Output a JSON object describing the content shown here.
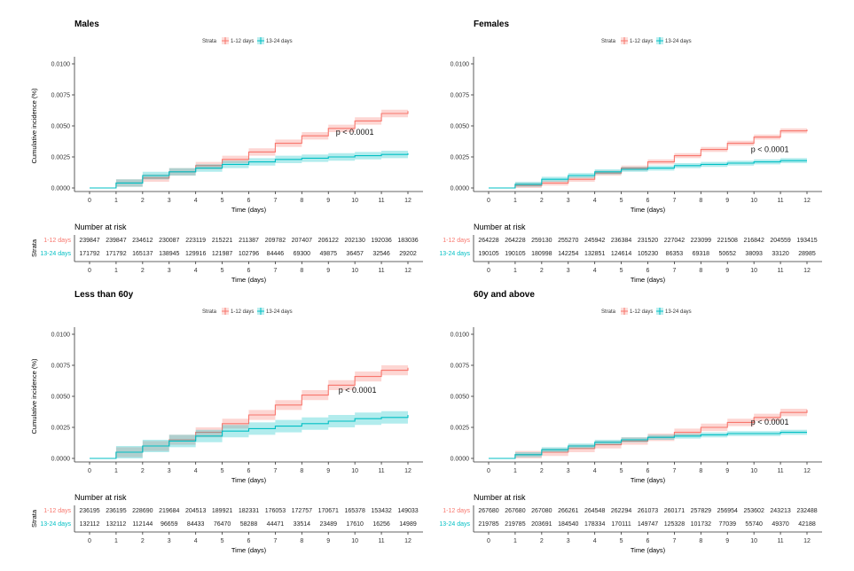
{
  "colors": {
    "strata1": "#f8766d",
    "strata2": "#00bfc4"
  },
  "legend_title": "Strata",
  "y_axis_label": "Cumulative incidence (%)",
  "x_axis_label": "Time (days)",
  "risk_title": "Number at risk",
  "risk_y_label": "Strata",
  "chart_data": [
    {
      "type": "line",
      "step": true,
      "title": "Males",
      "xlabel": "Time (days)",
      "ylabel": "Cumulative incidence (%)",
      "xlim": [
        0,
        12
      ],
      "ylim": [
        0,
        0.01
      ],
      "x_ticks": [
        "0",
        "1",
        "2",
        "3",
        "4",
        "5",
        "6",
        "7",
        "8",
        "9",
        "10",
        "11",
        "12"
      ],
      "y_ticks": [
        "0.0000",
        "0.0025",
        "0.0050",
        "0.0075",
        "0.0100"
      ],
      "legend_position": "top-center",
      "p_value": "p < 0.0001",
      "series": [
        {
          "name": "1-12 days",
          "x": [
            0,
            1,
            2,
            3,
            4,
            5,
            6,
            7,
            8,
            9,
            10,
            11,
            12
          ],
          "values": [
            0.0,
            0.0004,
            0.0008,
            0.0013,
            0.0018,
            0.0023,
            0.0029,
            0.0036,
            0.0042,
            0.0048,
            0.0054,
            0.006,
            0.0062
          ],
          "ci": 0.0003
        },
        {
          "name": "13-24 days",
          "x": [
            0,
            1,
            2,
            3,
            4,
            5,
            6,
            7,
            8,
            9,
            10,
            11,
            12
          ],
          "values": [
            0.0,
            0.0004,
            0.001,
            0.0013,
            0.0016,
            0.0019,
            0.0021,
            0.0023,
            0.0024,
            0.0025,
            0.0026,
            0.0027,
            0.0028
          ],
          "ci": 0.0003
        }
      ],
      "risk_table": {
        "rows": [
          {
            "label": "1-12 days",
            "values": [
              "239847",
              "239847",
              "234612",
              "230087",
              "223119",
              "215221",
              "211387",
              "209782",
              "207407",
              "206122",
              "202130",
              "192036",
              "183036"
            ]
          },
          {
            "label": "13-24 days",
            "values": [
              "171792",
              "171792",
              "165137",
              "138945",
              "129916",
              "121987",
              "102796",
              "84446",
              "69300",
              "49875",
              "36457",
              "32546",
              "29202"
            ]
          }
        ]
      }
    },
    {
      "type": "line",
      "step": true,
      "title": "Females",
      "xlabel": "Time (days)",
      "ylabel": "",
      "xlim": [
        0,
        12
      ],
      "ylim": [
        0,
        0.01
      ],
      "x_ticks": [
        "0",
        "1",
        "2",
        "3",
        "4",
        "5",
        "6",
        "7",
        "8",
        "9",
        "10",
        "11",
        "12"
      ],
      "y_ticks": [
        "0.0000",
        "0.0025",
        "0.0050",
        "0.0075",
        "0.0100"
      ],
      "legend_position": "top-center",
      "p_value": "p < 0.0001",
      "series": [
        {
          "name": "1-12 days",
          "x": [
            0,
            1,
            2,
            3,
            4,
            5,
            6,
            7,
            8,
            9,
            10,
            11,
            12
          ],
          "values": [
            0.0,
            0.0002,
            0.0004,
            0.0007,
            0.0012,
            0.0016,
            0.0021,
            0.0026,
            0.0031,
            0.0036,
            0.0041,
            0.0046,
            0.0047
          ],
          "ci": 0.0002
        },
        {
          "name": "13-24 days",
          "x": [
            0,
            1,
            2,
            3,
            4,
            5,
            6,
            7,
            8,
            9,
            10,
            11,
            12
          ],
          "values": [
            0.0,
            0.0003,
            0.0007,
            0.001,
            0.0013,
            0.0015,
            0.0016,
            0.0018,
            0.0019,
            0.002,
            0.0021,
            0.0022,
            0.0022
          ],
          "ci": 0.0002
        }
      ],
      "risk_table": {
        "rows": [
          {
            "label": "1-12 days",
            "values": [
              "264228",
              "264228",
              "259130",
              "255270",
              "245942",
              "236384",
              "231520",
              "227042",
              "223099",
              "221508",
              "216842",
              "204559",
              "193415"
            ]
          },
          {
            "label": "13-24 days",
            "values": [
              "190105",
              "190105",
              "180998",
              "142254",
              "132851",
              "124614",
              "105230",
              "86353",
              "69318",
              "50652",
              "38093",
              "33120",
              "28985"
            ]
          }
        ]
      }
    },
    {
      "type": "line",
      "step": true,
      "title": "Less than 60y",
      "xlabel": "Time (days)",
      "ylabel": "Cumulative incidence (%)",
      "xlim": [
        0,
        12
      ],
      "ylim": [
        0,
        0.01
      ],
      "x_ticks": [
        "0",
        "1",
        "2",
        "3",
        "4",
        "5",
        "6",
        "7",
        "8",
        "9",
        "10",
        "11",
        "12"
      ],
      "y_ticks": [
        "0.0000",
        "0.0025",
        "0.0050",
        "0.0075",
        "0.0100"
      ],
      "legend_position": "top-center",
      "p_value": "p < 0.0001",
      "series": [
        {
          "name": "1-12 days",
          "x": [
            0,
            1,
            2,
            3,
            4,
            5,
            6,
            7,
            8,
            9,
            10,
            11,
            12
          ],
          "values": [
            0.0,
            0.0005,
            0.001,
            0.0015,
            0.0021,
            0.0028,
            0.0035,
            0.0043,
            0.0051,
            0.0059,
            0.0066,
            0.0071,
            0.0073
          ],
          "ci": 0.0004
        },
        {
          "name": "13-24 days",
          "x": [
            0,
            1,
            2,
            3,
            4,
            5,
            6,
            7,
            8,
            9,
            10,
            11,
            12
          ],
          "values": [
            0.0,
            0.0005,
            0.001,
            0.0014,
            0.0018,
            0.0022,
            0.0024,
            0.0026,
            0.0028,
            0.003,
            0.0032,
            0.0033,
            0.0035
          ],
          "ci": 0.0005
        }
      ],
      "risk_table": {
        "rows": [
          {
            "label": "1-12 days",
            "values": [
              "236195",
              "236195",
              "228690",
              "219684",
              "204513",
              "189921",
              "182331",
              "176053",
              "172757",
              "170671",
              "165378",
              "153432",
              "149033"
            ]
          },
          {
            "label": "13-24 days",
            "values": [
              "132112",
              "132112",
              "112144",
              "96659",
              "84433",
              "76470",
              "58288",
              "44471",
              "33514",
              "23489",
              "17610",
              "16256",
              "14989"
            ]
          }
        ]
      }
    },
    {
      "type": "line",
      "step": true,
      "title": "60y and above",
      "xlabel": "Time (days)",
      "ylabel": "",
      "xlim": [
        0,
        12
      ],
      "ylim": [
        0,
        0.01
      ],
      "x_ticks": [
        "0",
        "1",
        "2",
        "3",
        "4",
        "5",
        "6",
        "7",
        "8",
        "9",
        "10",
        "11",
        "12"
      ],
      "y_ticks": [
        "0.0000",
        "0.0025",
        "0.0050",
        "0.0075",
        "0.0100"
      ],
      "legend_position": "top-center",
      "p_value": "p < 0.0001",
      "series": [
        {
          "name": "1-12 days",
          "x": [
            0,
            1,
            2,
            3,
            4,
            5,
            6,
            7,
            8,
            9,
            10,
            11,
            12
          ],
          "values": [
            0.0,
            0.0003,
            0.0005,
            0.0008,
            0.0011,
            0.0014,
            0.0017,
            0.0021,
            0.0025,
            0.0029,
            0.0033,
            0.0037,
            0.0039
          ],
          "ci": 0.0003
        },
        {
          "name": "13-24 days",
          "x": [
            0,
            1,
            2,
            3,
            4,
            5,
            6,
            7,
            8,
            9,
            10,
            11,
            12
          ],
          "values": [
            0.0,
            0.0003,
            0.0007,
            0.001,
            0.0013,
            0.0015,
            0.0017,
            0.0018,
            0.0019,
            0.002,
            0.002,
            0.0021,
            0.0021
          ],
          "ci": 0.0002
        }
      ],
      "risk_table": {
        "rows": [
          {
            "label": "1-12 days",
            "values": [
              "267680",
              "267680",
              "267080",
              "266261",
              "264548",
              "262294",
              "261073",
              "260171",
              "257829",
              "256954",
              "253602",
              "243213",
              "232488"
            ]
          },
          {
            "label": "13-24 days",
            "values": [
              "219785",
              "219785",
              "203691",
              "184540",
              "178334",
              "170111",
              "149747",
              "125328",
              "101732",
              "77039",
              "55740",
              "49370",
              "42188"
            ]
          }
        ]
      }
    }
  ]
}
